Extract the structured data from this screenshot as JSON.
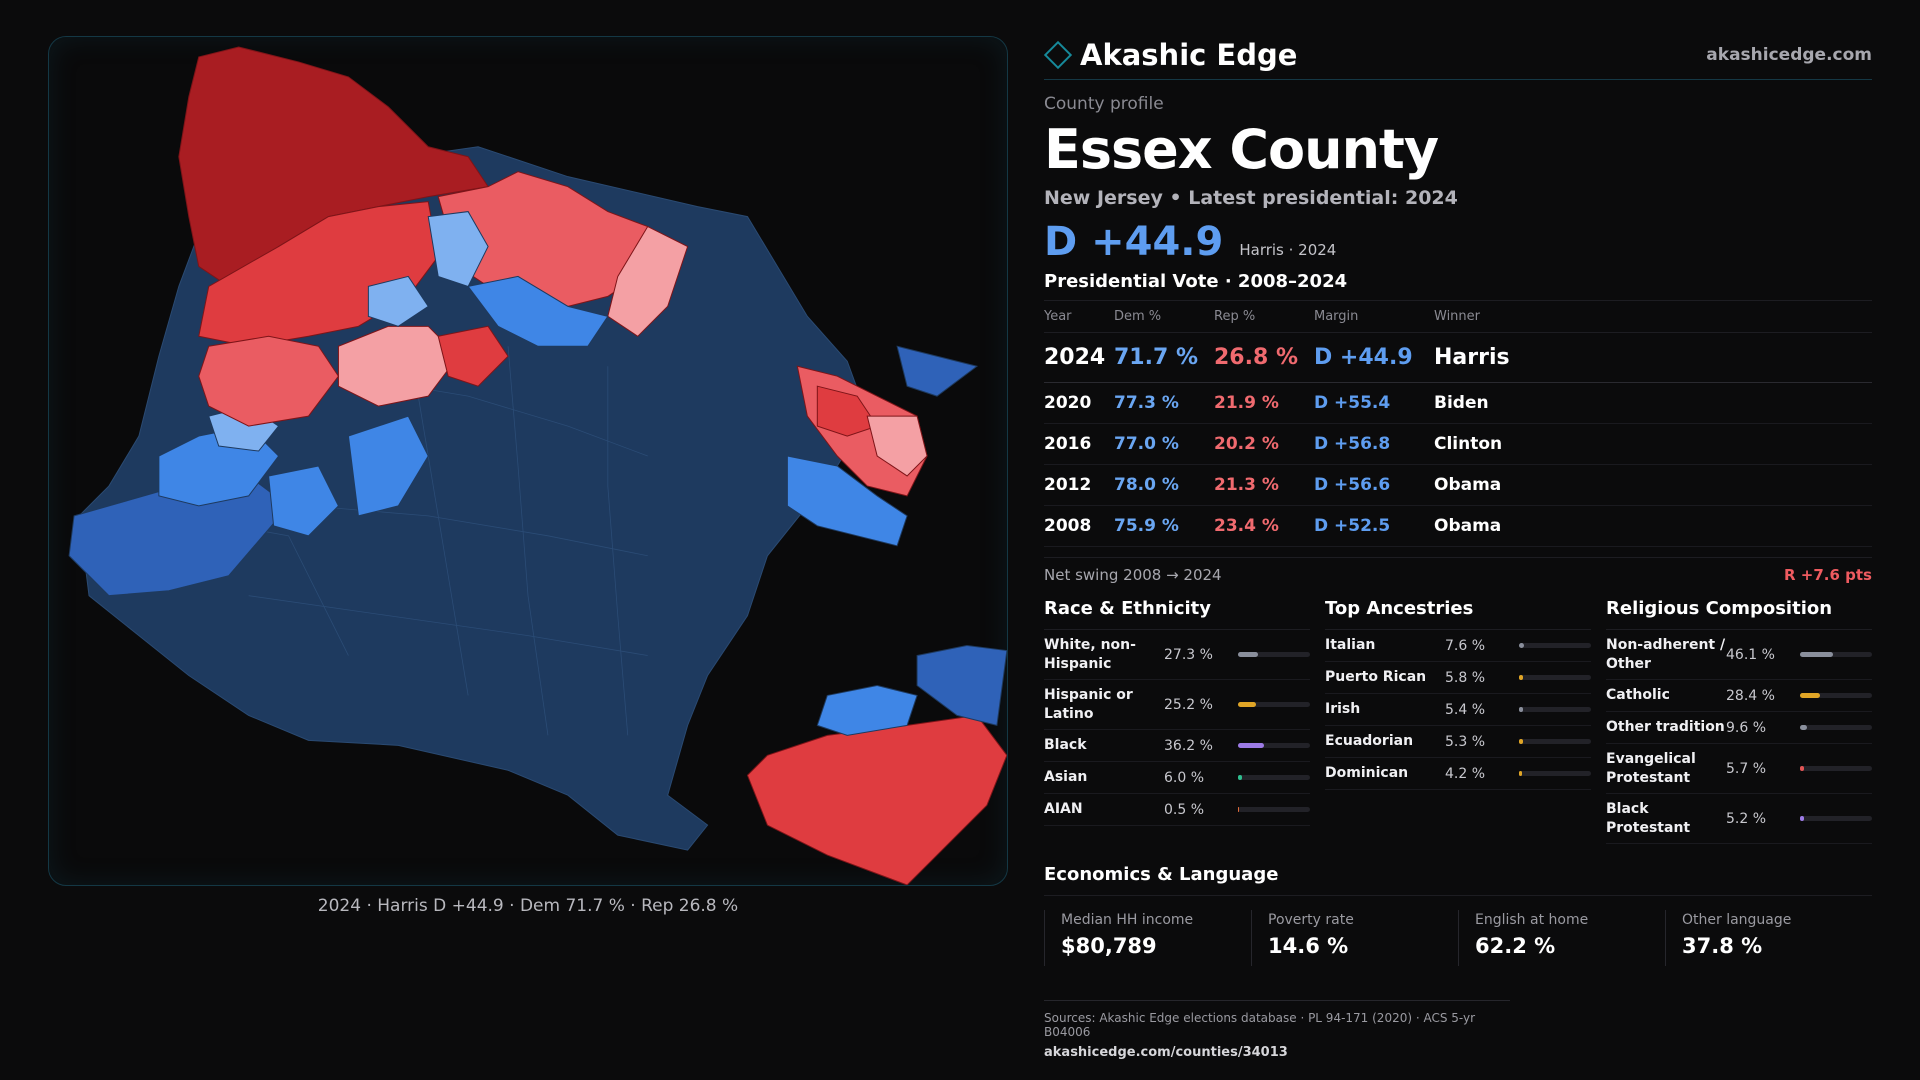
{
  "brand": {
    "name": "Akashic Edge",
    "url": "akashicedge.com"
  },
  "profile": {
    "eyebrow": "County profile",
    "county": "Essex County",
    "subtitle": "New Jersey • Latest presidential: 2024",
    "headline_margin": "D +44.9",
    "headline_note": "Harris · 2024"
  },
  "map": {
    "caption": "2024 · Harris D +44.9 · Dem 71.7 % · Rep 26.8 %",
    "colors": {
      "strong_dem": "#1e3a5f",
      "likely_dem": "#2f62b8",
      "lean_dem": "#3f86e6",
      "tilt_dem": "#7fb1f0",
      "tilt_rep": "#f4a0a4",
      "lean_rep": "#ea5c62",
      "likely_rep": "#df3c40",
      "strong_rep": "#a91d22",
      "background": "#0a0a0b"
    }
  },
  "vote_table": {
    "title": "Presidential Vote · 2008–2024",
    "headers": {
      "year": "Year",
      "dem": "Dem %",
      "rep": "Rep %",
      "margin": "Margin",
      "winner": "Winner"
    },
    "rows": [
      {
        "year": "2024",
        "dem": "71.7 %",
        "rep": "26.8 %",
        "margin": "D +44.9",
        "winner": "Harris"
      },
      {
        "year": "2020",
        "dem": "77.3 %",
        "rep": "21.9 %",
        "margin": "D +55.4",
        "winner": "Biden"
      },
      {
        "year": "2016",
        "dem": "77.0 %",
        "rep": "20.2 %",
        "margin": "D +56.8",
        "winner": "Clinton"
      },
      {
        "year": "2012",
        "dem": "78.0 %",
        "rep": "21.3 %",
        "margin": "D +56.6",
        "winner": "Obama"
      },
      {
        "year": "2008",
        "dem": "75.9 %",
        "rep": "23.4 %",
        "margin": "D +52.5",
        "winner": "Obama"
      }
    ],
    "swing_label": "Net swing 2008 → 2024",
    "swing_value": "R +7.6 pts"
  },
  "race": {
    "title": "Race & Ethnicity",
    "items": [
      {
        "label": "White, non-Hispanic",
        "value": "27.3 %",
        "pct": 27.3,
        "color": "#8a8f9c"
      },
      {
        "label": "Hispanic or Latino",
        "value": "25.2 %",
        "pct": 25.2,
        "color": "#e0a526"
      },
      {
        "label": "Black",
        "value": "36.2 %",
        "pct": 36.2,
        "color": "#9d7be6"
      },
      {
        "label": "Asian",
        "value": "6.0 %",
        "pct": 6.0,
        "color": "#2fbf8f"
      },
      {
        "label": "AIAN",
        "value": "0.5 %",
        "pct": 0.5,
        "color": "#e06a3a"
      }
    ]
  },
  "ancestry": {
    "title": "Top Ancestries",
    "items": [
      {
        "label": "Italian",
        "value": "7.6 %",
        "pct": 7.6,
        "color": "#8a8f9c"
      },
      {
        "label": "Puerto Rican",
        "value": "5.8 %",
        "pct": 5.8,
        "color": "#e0a526"
      },
      {
        "label": "Irish",
        "value": "5.4 %",
        "pct": 5.4,
        "color": "#8a8f9c"
      },
      {
        "label": "Ecuadorian",
        "value": "5.3 %",
        "pct": 5.3,
        "color": "#e0a526"
      },
      {
        "label": "Dominican",
        "value": "4.2 %",
        "pct": 4.2,
        "color": "#e0a526"
      }
    ]
  },
  "religion": {
    "title": "Religious Composition",
    "items": [
      {
        "label": "Non-adherent / Other",
        "value": "46.1 %",
        "pct": 46.1,
        "color": "#8a8f9c"
      },
      {
        "label": "Catholic",
        "value": "28.4 %",
        "pct": 28.4,
        "color": "#e0a526"
      },
      {
        "label": "Other tradition",
        "value": "9.6 %",
        "pct": 9.6,
        "color": "#8a8f9c"
      },
      {
        "label": "Evangelical Protestant",
        "value": "5.7 %",
        "pct": 5.7,
        "color": "#e25555"
      },
      {
        "label": "Black Protestant",
        "value": "5.2 %",
        "pct": 5.2,
        "color": "#9d7be6"
      }
    ]
  },
  "economics": {
    "title": "Economics & Language",
    "items": [
      {
        "label": "Median HH income",
        "value": "$80,789"
      },
      {
        "label": "Poverty rate",
        "value": "14.6 %"
      },
      {
        "label": "English at home",
        "value": "62.2 %"
      },
      {
        "label": "Other language",
        "value": "37.8 %"
      }
    ]
  },
  "sources": {
    "line": "Sources: Akashic Edge elections database · PL 94-171 (2020) · ACS 5-yr B04006",
    "url": "akashicedge.com/counties/34013"
  }
}
